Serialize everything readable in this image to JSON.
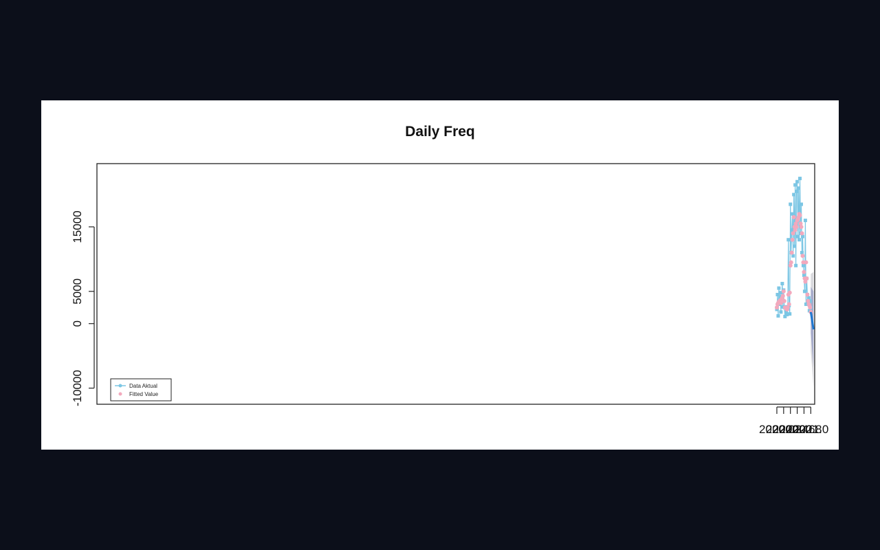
{
  "colors": {
    "page_background": "#0c0f1a",
    "panel_background": "#ffffff",
    "actual": "#7cc6e4",
    "fitted": "#f2a9bd",
    "forecast": "#1f78d1",
    "band80": "#9ea3c8",
    "band95": "#d9d9dd"
  },
  "chart_data": {
    "type": "line",
    "title": "Daily Freq",
    "xlabel": "",
    "ylabel": "",
    "xlim": [
      1999.965,
      2021.115
    ],
    "ylim": [
      -12500,
      24800
    ],
    "x_ticks": [
      2020.0,
      2020.2,
      2020.4,
      2020.6,
      2020.8,
      2021.0
    ],
    "x_tick_labels": [
      "2020.0",
      "2020.2",
      "2020.4",
      "2020.6",
      "2020.8",
      "2021.0"
    ],
    "y_ticks": [
      -10000,
      0,
      5000,
      15000
    ],
    "y_tick_labels": [
      "-10000",
      "0",
      "5000",
      "15000"
    ],
    "grid": false,
    "legend": {
      "position": "bottom-left",
      "entries": [
        "Data Aktual",
        "Fitted Value"
      ]
    },
    "series": [
      {
        "name": "Data Aktual",
        "style": "line+points",
        "x": [
          2020.0,
          2020.02,
          2020.04,
          2020.06,
          2020.08,
          2020.1,
          2020.12,
          2020.14,
          2020.16,
          2020.18,
          2020.2,
          2020.22,
          2020.24,
          2020.26,
          2020.28,
          2020.3,
          2020.32,
          2020.34,
          2020.36,
          2020.38,
          2020.4,
          2020.42,
          2020.44,
          2020.46,
          2020.48,
          2020.5,
          2020.52,
          2020.54,
          2020.56,
          2020.58,
          2020.6,
          2020.62,
          2020.64,
          2020.66,
          2020.68,
          2020.7,
          2020.72,
          2020.74,
          2020.76,
          2020.78,
          2020.8,
          2020.82,
          2020.84,
          2020.86,
          2020.88,
          2020.9,
          2020.92,
          2020.94,
          2020.96,
          2020.98,
          2021.0
        ],
        "y": [
          2200,
          4500,
          1200,
          5500,
          3000,
          4800,
          1800,
          4200,
          6200,
          2600,
          5200,
          2500,
          1100,
          2600,
          1800,
          1400,
          2500,
          13000,
          2800,
          1500,
          18500,
          11000,
          14500,
          17000,
          10500,
          20000,
          12000,
          21500,
          9000,
          20500,
          22000,
          13500,
          21000,
          13000,
          22500,
          14000,
          18500,
          11000,
          13500,
          9000,
          7500,
          5000,
          16000,
          3000,
          7000,
          4500,
          3500,
          4000,
          2000,
          3500,
          2500
        ]
      },
      {
        "name": "Fitted Value",
        "style": "points",
        "x": [
          2020.0,
          2020.02,
          2020.04,
          2020.06,
          2020.08,
          2020.1,
          2020.12,
          2020.14,
          2020.16,
          2020.18,
          2020.2,
          2020.22,
          2020.24,
          2020.26,
          2020.28,
          2020.3,
          2020.32,
          2020.34,
          2020.36,
          2020.38,
          2020.4,
          2020.42,
          2020.44,
          2020.46,
          2020.48,
          2020.5,
          2020.52,
          2020.54,
          2020.56,
          2020.58,
          2020.6,
          2020.62,
          2020.64,
          2020.66,
          2020.68,
          2020.7,
          2020.72,
          2020.74,
          2020.76,
          2020.78,
          2020.8,
          2020.82,
          2020.84,
          2020.86,
          2020.88,
          2020.9,
          2020.92,
          2020.94,
          2020.96,
          2020.98,
          2021.0
        ],
        "y": [
          2500,
          3000,
          3200,
          3400,
          3300,
          3600,
          3200,
          3800,
          4000,
          4300,
          5000,
          3500,
          2500,
          2400,
          2300,
          2200,
          2500,
          4500,
          3000,
          4800,
          9000,
          9500,
          11000,
          13000,
          14000,
          16500,
          15000,
          14500,
          15500,
          15000,
          16000,
          16200,
          16500,
          17000,
          16800,
          15500,
          15000,
          14000,
          10500,
          9500,
          8000,
          7000,
          6500,
          9500,
          7000,
          4500,
          3500,
          3000,
          2800,
          2500,
          1800
        ]
      },
      {
        "name": "",
        "style": "forecast-line",
        "x": [
          2021.0,
          2021.08
        ],
        "y": [
          1800,
          -900
        ]
      }
    ],
    "forecast_bands": {
      "x": [
        2021.0,
        2021.08
      ],
      "lower95": [
        -4200,
        -9800
      ],
      "upper95": [
        7700,
        8000
      ],
      "lower80": [
        -1500,
        -6700
      ],
      "upper80": [
        5700,
        5000
      ]
    }
  }
}
